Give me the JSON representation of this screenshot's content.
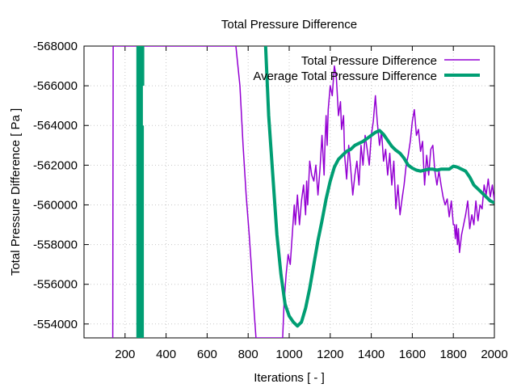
{
  "chart_data": {
    "type": "line",
    "title": "Total Pressure Difference",
    "xlabel": "Iterations [ - ]",
    "ylabel": "Total Pressure Difference [ Pa ]",
    "xlim": [
      0,
      2000
    ],
    "ylim": [
      -553300,
      -568000
    ],
    "x_ticks": [
      200,
      400,
      600,
      800,
      1000,
      1200,
      1400,
      1600,
      1800,
      2000
    ],
    "x_tick_labels": [
      "200",
      "400",
      "600",
      "800",
      "1000",
      "1200",
      "1400",
      "1600",
      "1800",
      "2000"
    ],
    "y_ticks": [
      -568000,
      -566000,
      -564000,
      -562000,
      -560000,
      -558000,
      -556000,
      -554000
    ],
    "y_tick_labels": [
      "-568000",
      "-566000",
      "-564000",
      "-562000",
      "-560000",
      "-558000",
      "-556000",
      "-554000"
    ],
    "grid": true,
    "legend_position": "top-right",
    "series": [
      {
        "name": "Total Pressure Difference",
        "color": "#9400d3",
        "points": [
          [
            140,
            -553300
          ],
          [
            141,
            -560000
          ],
          [
            142,
            -568000
          ],
          [
            144,
            -568000
          ],
          [
            740,
            -568000
          ],
          [
            760,
            -566000
          ],
          [
            775,
            -563000
          ],
          [
            790,
            -560500
          ],
          [
            805,
            -558500
          ],
          [
            815,
            -557000
          ],
          [
            830,
            -554500
          ],
          [
            838,
            -553300
          ],
          [
            968,
            -553300
          ],
          [
            975,
            -555000
          ],
          [
            985,
            -556500
          ],
          [
            995,
            -557500
          ],
          [
            1005,
            -557000
          ],
          [
            1015,
            -558500
          ],
          [
            1025,
            -560000
          ],
          [
            1030,
            -559000
          ],
          [
            1040,
            -560500
          ],
          [
            1050,
            -559000
          ],
          [
            1060,
            -560200
          ],
          [
            1070,
            -561000
          ],
          [
            1080,
            -559500
          ],
          [
            1085,
            -561200
          ],
          [
            1090,
            -560000
          ],
          [
            1100,
            -562200
          ],
          [
            1110,
            -561500
          ],
          [
            1120,
            -561200
          ],
          [
            1130,
            -562000
          ],
          [
            1140,
            -560500
          ],
          [
            1150,
            -561800
          ],
          [
            1160,
            -563500
          ],
          [
            1170,
            -561500
          ],
          [
            1175,
            -563200
          ],
          [
            1180,
            -564500
          ],
          [
            1185,
            -563000
          ],
          [
            1190,
            -564800
          ],
          [
            1200,
            -566000
          ],
          [
            1210,
            -565500
          ],
          [
            1220,
            -567000
          ],
          [
            1230,
            -566400
          ],
          [
            1240,
            -564500
          ],
          [
            1250,
            -565200
          ],
          [
            1255,
            -563800
          ],
          [
            1265,
            -564500
          ],
          [
            1270,
            -562500
          ],
          [
            1280,
            -561300
          ],
          [
            1290,
            -563000
          ],
          [
            1300,
            -561800
          ],
          [
            1310,
            -560500
          ],
          [
            1320,
            -561500
          ],
          [
            1330,
            -562200
          ],
          [
            1340,
            -561000
          ],
          [
            1350,
            -563000
          ],
          [
            1360,
            -562000
          ],
          [
            1370,
            -563500
          ],
          [
            1380,
            -562800
          ],
          [
            1390,
            -562000
          ],
          [
            1400,
            -563500
          ],
          [
            1410,
            -564200
          ],
          [
            1420,
            -565500
          ],
          [
            1425,
            -564800
          ],
          [
            1430,
            -564100
          ],
          [
            1440,
            -563000
          ],
          [
            1450,
            -563700
          ],
          [
            1460,
            -562200
          ],
          [
            1470,
            -562800
          ],
          [
            1480,
            -561500
          ],
          [
            1490,
            -562600
          ],
          [
            1500,
            -561000
          ],
          [
            1510,
            -562200
          ],
          [
            1520,
            -559800
          ],
          [
            1530,
            -561000
          ],
          [
            1540,
            -559500
          ],
          [
            1550,
            -560300
          ],
          [
            1560,
            -561000
          ],
          [
            1570,
            -562000
          ],
          [
            1580,
            -562500
          ],
          [
            1590,
            -563200
          ],
          [
            1600,
            -564200
          ],
          [
            1610,
            -564800
          ],
          [
            1620,
            -563500
          ],
          [
            1630,
            -563800
          ],
          [
            1640,
            -562700
          ],
          [
            1650,
            -563200
          ],
          [
            1655,
            -562000
          ],
          [
            1660,
            -561000
          ],
          [
            1670,
            -562500
          ],
          [
            1680,
            -561500
          ],
          [
            1690,
            -562800
          ],
          [
            1700,
            -563000
          ],
          [
            1710,
            -561700
          ],
          [
            1720,
            -561000
          ],
          [
            1730,
            -561700
          ],
          [
            1740,
            -561000
          ],
          [
            1750,
            -560400
          ],
          [
            1760,
            -560000
          ],
          [
            1770,
            -560300
          ],
          [
            1780,
            -559400
          ],
          [
            1790,
            -560200
          ],
          [
            1800,
            -559000
          ],
          [
            1805,
            -559000
          ],
          [
            1810,
            -558300
          ],
          [
            1815,
            -559000
          ],
          [
            1820,
            -558000
          ],
          [
            1825,
            -558800
          ],
          [
            1830,
            -557600
          ],
          [
            1840,
            -558500
          ],
          [
            1850,
            -559000
          ],
          [
            1860,
            -559500
          ],
          [
            1870,
            -560200
          ],
          [
            1880,
            -558800
          ],
          [
            1890,
            -559500
          ],
          [
            1900,
            -559000
          ],
          [
            1910,
            -560200
          ],
          [
            1920,
            -559200
          ],
          [
            1930,
            -560000
          ],
          [
            1940,
            -559800
          ],
          [
            1950,
            -561000
          ],
          [
            1960,
            -560500
          ],
          [
            1970,
            -561300
          ],
          [
            1980,
            -560400
          ],
          [
            1990,
            -561000
          ],
          [
            2000,
            -560200
          ]
        ]
      },
      {
        "name": "Average Total Pressure Difference",
        "color": "#009e73",
        "segments": [
          [
            [
              263,
              -553300
            ],
            [
              263,
              -568000
            ]
          ],
          [
            [
              268,
              -553300
            ],
            [
              268,
              -568000
            ]
          ],
          [
            [
              274,
              -553300
            ],
            [
              274,
              -560500
            ]
          ],
          [
            [
              279,
              -553300
            ],
            [
              279,
              -568000
            ]
          ],
          [
            [
              284,
              -553300
            ],
            [
              284,
              -564000
            ]
          ],
          [
            [
              286,
              -566000
            ],
            [
              286,
              -568000
            ]
          ]
        ],
        "points": [
          [
            885,
            -568000
          ],
          [
            900,
            -564500
          ],
          [
            920,
            -561500
          ],
          [
            940,
            -558500
          ],
          [
            960,
            -556500
          ],
          [
            980,
            -555000
          ],
          [
            1000,
            -554400
          ],
          [
            1020,
            -554100
          ],
          [
            1040,
            -553900
          ],
          [
            1060,
            -554100
          ],
          [
            1080,
            -554800
          ],
          [
            1100,
            -555800
          ],
          [
            1120,
            -557000
          ],
          [
            1140,
            -558200
          ],
          [
            1160,
            -559200
          ],
          [
            1180,
            -560300
          ],
          [
            1200,
            -561200
          ],
          [
            1220,
            -561900
          ],
          [
            1240,
            -562300
          ],
          [
            1260,
            -562500
          ],
          [
            1280,
            -562700
          ],
          [
            1300,
            -562800
          ],
          [
            1320,
            -563000
          ],
          [
            1340,
            -563100
          ],
          [
            1360,
            -563200
          ],
          [
            1380,
            -563350
          ],
          [
            1400,
            -563500
          ],
          [
            1420,
            -563650
          ],
          [
            1440,
            -563750
          ],
          [
            1460,
            -563550
          ],
          [
            1480,
            -563250
          ],
          [
            1500,
            -562950
          ],
          [
            1520,
            -562750
          ],
          [
            1540,
            -562600
          ],
          [
            1560,
            -562350
          ],
          [
            1580,
            -562000
          ],
          [
            1600,
            -561850
          ],
          [
            1620,
            -561750
          ],
          [
            1640,
            -561700
          ],
          [
            1660,
            -561750
          ],
          [
            1680,
            -561800
          ],
          [
            1700,
            -561800
          ],
          [
            1720,
            -561750
          ],
          [
            1740,
            -561800
          ],
          [
            1760,
            -561800
          ],
          [
            1780,
            -561800
          ],
          [
            1800,
            -561950
          ],
          [
            1820,
            -561900
          ],
          [
            1840,
            -561800
          ],
          [
            1860,
            -561700
          ],
          [
            1880,
            -561400
          ],
          [
            1900,
            -561000
          ],
          [
            1920,
            -560800
          ],
          [
            1940,
            -560600
          ],
          [
            1960,
            -560400
          ],
          [
            1980,
            -560200
          ],
          [
            2000,
            -560100
          ]
        ]
      }
    ]
  }
}
